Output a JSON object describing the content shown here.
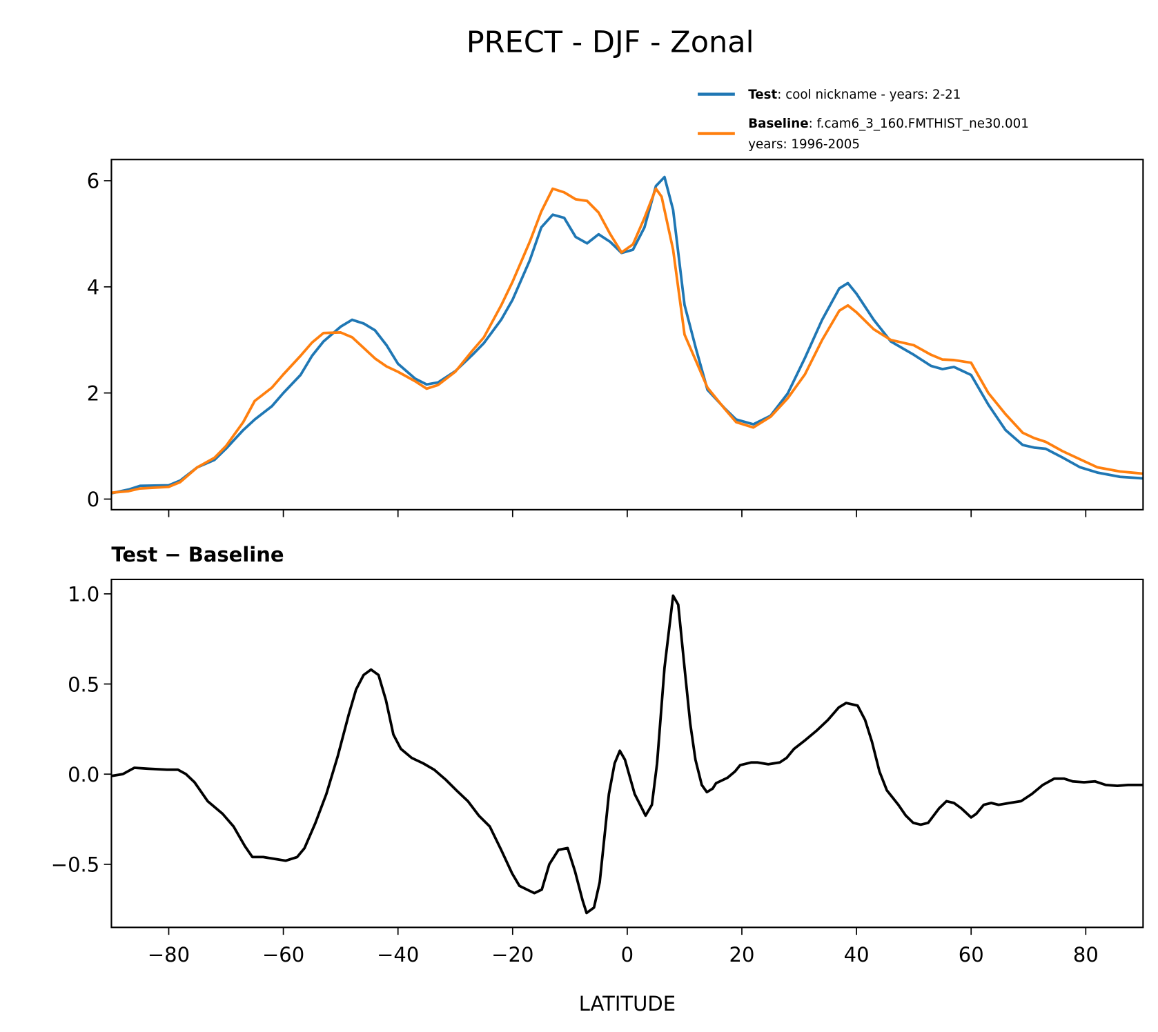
{
  "title": "PRECT - DJF - Zonal",
  "legend": {
    "placement": "top-right, above top panel",
    "entries": [
      {
        "label_bold": "Test",
        "label_rest": ": cool nickname - years: 2-21",
        "label_line2": "",
        "color": "#1f77b4"
      },
      {
        "label_bold": "Baseline",
        "label_rest": ": f.cam6_3_160.FMTHIST_ne30.001",
        "label_line2": "years: 1996-2005",
        "color": "#ff7f0e"
      }
    ]
  },
  "chart_data": [
    {
      "type": "line",
      "title": "",
      "xlabel": "",
      "ylabel": "",
      "xlim": [
        -90,
        90
      ],
      "ylim": [
        -0.2,
        6.4
      ],
      "xticks": [
        -80,
        -60,
        -40,
        -20,
        0,
        20,
        40,
        60,
        80
      ],
      "yticks": [
        0,
        2,
        4,
        6
      ],
      "ytick_labels": [
        "0",
        "2",
        "4",
        "6"
      ],
      "grid": false,
      "series": [
        {
          "name": "Test",
          "color": "#1f77b4",
          "x": [
            -90,
            -87,
            -85,
            -80,
            -78,
            -75,
            -72,
            -70,
            -67,
            -65,
            -62,
            -60,
            -57,
            -55,
            -53,
            -50,
            -48,
            -46,
            -44,
            -42,
            -40,
            -37,
            -35,
            -33,
            -30,
            -27,
            -25,
            -22,
            -20,
            -17,
            -15,
            -13,
            -11,
            -9,
            -7,
            -5,
            -3,
            -1,
            1,
            3,
            5,
            6.5,
            8,
            10,
            12,
            14,
            17,
            19,
            22,
            25,
            28,
            31,
            34,
            37,
            38.5,
            40,
            43,
            46,
            50,
            53,
            55,
            57,
            60,
            63,
            66,
            69,
            71,
            73,
            76,
            79,
            82,
            86,
            90
          ],
          "y": [
            0.11,
            0.18,
            0.25,
            0.26,
            0.35,
            0.6,
            0.74,
            0.95,
            1.3,
            1.5,
            1.75,
            2.0,
            2.34,
            2.7,
            2.97,
            3.25,
            3.38,
            3.31,
            3.18,
            2.9,
            2.55,
            2.27,
            2.16,
            2.2,
            2.41,
            2.72,
            2.94,
            3.38,
            3.76,
            4.5,
            5.12,
            5.36,
            5.3,
            4.94,
            4.82,
            4.99,
            4.85,
            4.64,
            4.7,
            5.12,
            5.9,
            6.07,
            5.45,
            3.66,
            2.83,
            2.06,
            1.71,
            1.5,
            1.41,
            1.57,
            1.99,
            2.66,
            3.38,
            3.97,
            4.07,
            3.87,
            3.38,
            2.97,
            2.72,
            2.51,
            2.45,
            2.49,
            2.34,
            1.78,
            1.3,
            1.02,
            0.97,
            0.95,
            0.78,
            0.6,
            0.5,
            0.42,
            0.39
          ]
        },
        {
          "name": "Baseline",
          "color": "#ff7f0e",
          "x": [
            -90,
            -87,
            -85,
            -80,
            -78,
            -75,
            -72,
            -70,
            -67,
            -65,
            -62,
            -60,
            -57,
            -55,
            -53,
            -50,
            -48,
            -46,
            -44,
            -42,
            -40,
            -37,
            -35,
            -33,
            -30,
            -27,
            -25,
            -22,
            -20,
            -17,
            -15,
            -13,
            -11,
            -9,
            -7,
            -5,
            -3,
            -1,
            1,
            3,
            5,
            6,
            8,
            10,
            12,
            14,
            17,
            19,
            22,
            25,
            28,
            31,
            34,
            37,
            38.5,
            40,
            43,
            46,
            50,
            53,
            55,
            57,
            60,
            63,
            66,
            69,
            71,
            73,
            76,
            79,
            82,
            86,
            90
          ],
          "y": [
            0.12,
            0.15,
            0.2,
            0.23,
            0.32,
            0.6,
            0.78,
            1.0,
            1.45,
            1.85,
            2.1,
            2.35,
            2.7,
            2.95,
            3.13,
            3.14,
            3.05,
            2.85,
            2.65,
            2.5,
            2.4,
            2.22,
            2.08,
            2.15,
            2.4,
            2.8,
            3.05,
            3.65,
            4.1,
            4.85,
            5.42,
            5.85,
            5.78,
            5.65,
            5.62,
            5.4,
            5.0,
            4.65,
            4.8,
            5.3,
            5.85,
            5.7,
            4.7,
            3.1,
            2.6,
            2.1,
            1.7,
            1.45,
            1.35,
            1.55,
            1.9,
            2.35,
            3.0,
            3.55,
            3.65,
            3.52,
            3.2,
            3.0,
            2.9,
            2.72,
            2.63,
            2.62,
            2.57,
            2.0,
            1.6,
            1.25,
            1.15,
            1.08,
            0.9,
            0.75,
            0.6,
            0.52,
            0.48
          ]
        }
      ]
    },
    {
      "type": "line",
      "title": "Test − Baseline",
      "xlabel": "LATITUDE",
      "ylabel": "",
      "xlim": [
        -90,
        90
      ],
      "ylim": [
        -0.85,
        1.08
      ],
      "xticks": [
        -80,
        -60,
        -40,
        -20,
        0,
        20,
        40,
        60,
        80
      ],
      "xtick_labels": [
        "−80",
        "−60",
        "−40",
        "−20",
        "0",
        "20",
        "40",
        "60",
        "80"
      ],
      "yticks": [
        -0.5,
        0.0,
        0.5,
        1.0
      ],
      "ytick_labels": [
        "−0.5",
        "0.0",
        "0.5",
        "1.0"
      ],
      "grid": false,
      "series": [
        {
          "color": "#000000",
          "x": [
            -90,
            -88,
            -86,
            -83.5,
            -80.3,
            -78.4,
            -77,
            -75.5,
            -73.2,
            -70.6,
            -68.7,
            -66.7,
            -65.4,
            -63.5,
            -61.5,
            -59.6,
            -57.6,
            -56.3,
            -54.4,
            -52.5,
            -50.5,
            -48.6,
            -47.3,
            -46,
            -44.7,
            -43.4,
            -42.1,
            -40.8,
            -39.5,
            -37.6,
            -35.6,
            -33.7,
            -31.7,
            -29.8,
            -27.8,
            -25.9,
            -24,
            -22,
            -20.1,
            -18.8,
            -17.5,
            -16.2,
            -14.9,
            -13.6,
            -12,
            -10.4,
            -9.1,
            -7.8,
            -7.1,
            -5.8,
            -4.8,
            -3.2,
            -2.2,
            -1.3,
            -0.4,
            1.3,
            3.2,
            4.3,
            5.2,
            6.5,
            8,
            8.9,
            10,
            11,
            11.9,
            13,
            13.9,
            14.9,
            15.5,
            17.5,
            18.8,
            19.7,
            21.6,
            22.7,
            24.6,
            26.6,
            27.8,
            29.1,
            31.1,
            33,
            35,
            36.9,
            38.2,
            40.2,
            41.5,
            42.7,
            44,
            45.3,
            47.3,
            48.6,
            49.9,
            51.2,
            52.5,
            54.4,
            55.7,
            57,
            58.3,
            60,
            60.9,
            62.2,
            63.5,
            64.8,
            66.7,
            68.7,
            70.6,
            72.5,
            74.5,
            76.2,
            77.7,
            79.7,
            81.6,
            83.5,
            85.5,
            87.4,
            90
          ],
          "y": [
            -0.01,
            0.0,
            0.035,
            0.03,
            0.025,
            0.025,
            0.0,
            -0.045,
            -0.15,
            -0.22,
            -0.29,
            -0.4,
            -0.46,
            -0.46,
            -0.47,
            -0.48,
            -0.46,
            -0.41,
            -0.27,
            -0.11,
            0.1,
            0.33,
            0.47,
            0.55,
            0.58,
            0.55,
            0.41,
            0.22,
            0.14,
            0.09,
            0.06,
            0.025,
            -0.03,
            -0.09,
            -0.15,
            -0.23,
            -0.29,
            -0.42,
            -0.55,
            -0.62,
            -0.64,
            -0.66,
            -0.64,
            -0.5,
            -0.42,
            -0.41,
            -0.54,
            -0.7,
            -0.77,
            -0.74,
            -0.6,
            -0.11,
            0.06,
            0.13,
            0.08,
            -0.11,
            -0.23,
            -0.17,
            0.06,
            0.59,
            0.99,
            0.94,
            0.59,
            0.28,
            0.08,
            -0.06,
            -0.1,
            -0.08,
            -0.05,
            -0.02,
            0.015,
            0.05,
            0.065,
            0.065,
            0.055,
            0.065,
            0.09,
            0.14,
            0.19,
            0.24,
            0.3,
            0.37,
            0.395,
            0.38,
            0.3,
            0.18,
            0.015,
            -0.09,
            -0.17,
            -0.23,
            -0.27,
            -0.28,
            -0.27,
            -0.19,
            -0.15,
            -0.16,
            -0.19,
            -0.24,
            -0.22,
            -0.17,
            -0.16,
            -0.17,
            -0.16,
            -0.15,
            -0.11,
            -0.06,
            -0.025,
            -0.025,
            -0.04,
            -0.045,
            -0.04,
            -0.06,
            -0.065,
            -0.06,
            -0.06
          ]
        }
      ]
    }
  ]
}
